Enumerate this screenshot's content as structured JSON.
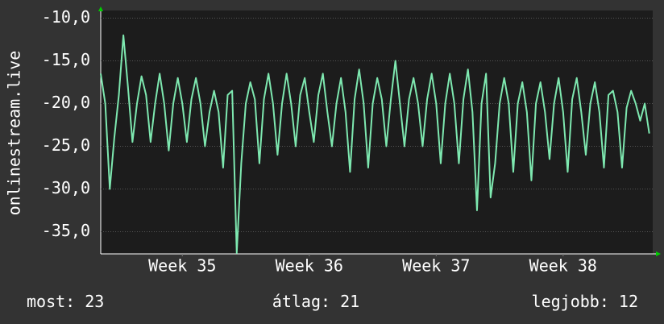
{
  "chart_data": {
    "type": "line",
    "y_label": "onlinestream.live",
    "x": [
      0,
      0.25,
      0.5,
      0.75,
      1,
      1.25,
      1.5,
      1.75,
      2,
      2.25,
      2.5,
      2.75,
      3,
      3.25,
      3.5,
      3.75,
      4,
      4.25,
      4.5,
      4.75,
      5,
      5.25,
      5.5,
      5.75,
      6,
      6.25,
      6.5,
      6.75,
      7,
      7.25,
      7.5,
      7.75,
      8,
      8.25,
      8.5,
      8.75,
      9,
      9.25,
      9.5,
      9.75,
      10,
      10.25,
      10.5,
      10.75,
      11,
      11.25,
      11.5,
      11.75,
      12,
      12.25,
      12.5,
      12.75,
      13,
      13.25,
      13.5,
      13.75,
      14,
      14.25,
      14.5,
      14.75,
      15,
      15.25,
      15.5,
      15.75,
      16,
      16.25,
      16.5,
      16.75,
      17,
      17.25,
      17.5,
      17.75,
      18,
      18.25,
      18.5,
      18.75,
      19,
      19.25,
      19.5,
      19.75,
      20,
      20.25,
      20.5,
      20.75,
      21,
      21.25,
      21.5,
      21.75,
      22,
      22.25,
      22.5,
      22.75,
      23,
      23.25,
      23.5,
      23.75,
      24,
      24.25,
      24.5,
      24.75,
      25,
      25.25,
      25.5,
      25.75,
      26,
      26.25,
      26.5,
      26.75,
      27,
      27.25,
      27.5,
      27.75,
      28,
      28.25,
      28.5,
      28.75,
      29,
      29.25,
      29.5,
      29.75,
      30,
      30.25
    ],
    "series": [
      {
        "color": "#7ee8b0",
        "values": [
          -16.5,
          -20,
          -30,
          -24,
          -19,
          -12,
          -18,
          -24.5,
          -20,
          -16.8,
          -19,
          -24.5,
          -20,
          -16.5,
          -20,
          -25.5,
          -20,
          -17,
          -20,
          -24.5,
          -19.5,
          -17,
          -20,
          -25,
          -21,
          -18.5,
          -21,
          -27.5,
          -19,
          -18.5,
          -37.5,
          -27,
          -20,
          -17.5,
          -19.5,
          -27,
          -19.5,
          -16.5,
          -20,
          -26,
          -20,
          -16.5,
          -20,
          -25,
          -19,
          -17,
          -21,
          -24.5,
          -19,
          -16.5,
          -21,
          -25,
          -20,
          -17,
          -21,
          -28,
          -19.5,
          -16,
          -20,
          -27.5,
          -20,
          -17,
          -19.5,
          -25,
          -19.5,
          -15,
          -20,
          -25,
          -19.5,
          -17,
          -20,
          -25,
          -19.5,
          -16.5,
          -20,
          -27,
          -20,
          -16.5,
          -20,
          -27,
          -19.5,
          -16,
          -21,
          -32.5,
          -20,
          -16.5,
          -31,
          -27,
          -20,
          -17,
          -20,
          -28,
          -20,
          -17.5,
          -21,
          -29,
          -20,
          -17.5,
          -21,
          -26.5,
          -20,
          -17,
          -21,
          -28,
          -19.5,
          -17,
          -21,
          -26,
          -20,
          -17.5,
          -21,
          -27.5,
          -19,
          -18.5,
          -21,
          -27.5,
          -20.5,
          -18.5,
          -20,
          -22,
          -20,
          -23.5
        ]
      }
    ],
    "xlim": [
      0,
      30.44
    ],
    "xticks": [
      {
        "value": 4.5,
        "label": "Week 35"
      },
      {
        "value": 11.5,
        "label": "Week 36"
      },
      {
        "value": 18.5,
        "label": "Week 37"
      },
      {
        "value": 25.5,
        "label": "Week 38"
      }
    ],
    "ylim": [
      -37.6,
      -9.1
    ],
    "yticks": [
      {
        "value": -35,
        "label": "-35,0"
      },
      {
        "value": -30,
        "label": "-30,0"
      },
      {
        "value": -25,
        "label": "-25,0"
      },
      {
        "value": -20,
        "label": "-20,0"
      },
      {
        "value": -15,
        "label": "-15,0"
      },
      {
        "value": -10,
        "label": "-10,0"
      }
    ],
    "grid": true,
    "stats": [
      {
        "label": "most:",
        "value": 23
      },
      {
        "label": "átlag:",
        "value": 21
      },
      {
        "label": "legjobb:",
        "value": 12
      }
    ]
  }
}
